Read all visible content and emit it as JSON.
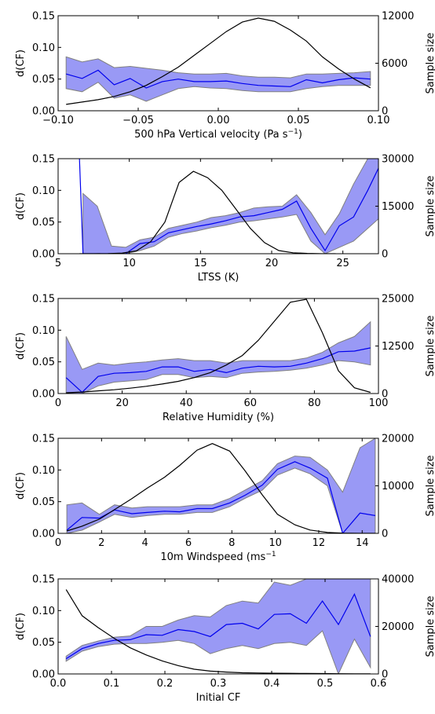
{
  "chart_data": [
    {
      "type": "line",
      "xlabel": "500 hPa Vertical velocity (Pa s",
      "xlabel_sup": "−1",
      "xlabel_tail": ")",
      "ylabel": "d(CF)",
      "y2label": "Sample size",
      "xlim": [
        -0.1,
        0.1
      ],
      "ylim": [
        0,
        0.15
      ],
      "y2lim": [
        0,
        12000
      ],
      "xticks": [
        -0.1,
        -0.05,
        0,
        0.05,
        0.1
      ],
      "xtick_labels": [
        "−0.10",
        "−0.05",
        "0.00",
        "0.05",
        "0.10"
      ],
      "yticks": [
        0,
        0.05,
        0.1,
        0.15
      ],
      "ytick_labels": [
        "0.00",
        "0.05",
        "0.10",
        "0.15"
      ],
      "y2ticks": [
        0,
        6000,
        12000
      ],
      "y2tick_labels": [
        "0",
        "6000",
        "12000"
      ],
      "band": {
        "x": [
          -0.095,
          -0.085,
          -0.075,
          -0.065,
          -0.055,
          -0.045,
          -0.035,
          -0.025,
          -0.015,
          -0.005,
          0.005,
          0.015,
          0.025,
          0.035,
          0.045,
          0.055,
          0.065,
          0.075,
          0.085,
          0.095
        ],
        "upper": [
          0.085,
          0.077,
          0.082,
          0.068,
          0.07,
          0.067,
          0.064,
          0.06,
          0.058,
          0.058,
          0.059,
          0.055,
          0.053,
          0.053,
          0.052,
          0.058,
          0.058,
          0.059,
          0.06,
          0.062
        ],
        "lower": [
          0.035,
          0.03,
          0.045,
          0.02,
          0.025,
          0.015,
          0.025,
          0.035,
          0.038,
          0.036,
          0.035,
          0.032,
          0.03,
          0.03,
          0.03,
          0.035,
          0.038,
          0.04,
          0.04,
          0.04
        ]
      },
      "mean": {
        "x": [
          -0.095,
          -0.085,
          -0.075,
          -0.065,
          -0.055,
          -0.045,
          -0.035,
          -0.025,
          -0.015,
          -0.005,
          0.005,
          0.015,
          0.025,
          0.035,
          0.045,
          0.055,
          0.065,
          0.075,
          0.085,
          0.095
        ],
        "y": [
          0.058,
          0.051,
          0.064,
          0.041,
          0.051,
          0.036,
          0.046,
          0.05,
          0.046,
          0.046,
          0.047,
          0.043,
          0.04,
          0.039,
          0.038,
          0.049,
          0.044,
          0.049,
          0.052,
          0.05
        ]
      },
      "count": {
        "x": [
          -0.095,
          -0.085,
          -0.075,
          -0.065,
          -0.055,
          -0.045,
          -0.035,
          -0.025,
          -0.015,
          -0.005,
          0.005,
          0.015,
          0.025,
          0.035,
          0.045,
          0.055,
          0.065,
          0.075,
          0.085,
          0.095
        ],
        "y": [
          800,
          1100,
          1400,
          1800,
          2400,
          3200,
          4300,
          5500,
          7000,
          8500,
          10000,
          11200,
          11700,
          11300,
          10200,
          8800,
          6800,
          5300,
          4000,
          2900
        ]
      }
    },
    {
      "type": "line",
      "xlabel": "LTSS (K)",
      "ylabel": "d(CF)",
      "y2label": "Sample size",
      "xlim": [
        5,
        27.5
      ],
      "ylim": [
        0,
        0.15
      ],
      "y2lim": [
        0,
        30000
      ],
      "xticks": [
        5,
        10,
        15,
        20,
        25
      ],
      "xtick_labels": [
        "5",
        "10",
        "15",
        "20",
        "25"
      ],
      "yticks": [
        0,
        0.05,
        0.1,
        0.15
      ],
      "ytick_labels": [
        "0.00",
        "0.05",
        "0.10",
        "0.15"
      ],
      "y2ticks": [
        0,
        15000,
        30000
      ],
      "y2tick_labels": [
        "0",
        "15000",
        "30000"
      ],
      "band": {
        "x": [
          6.75,
          7.75,
          8.75,
          9.75,
          10.75,
          11.75,
          12.75,
          13.75,
          14.75,
          15.75,
          16.75,
          17.75,
          18.75,
          19.75,
          20.75,
          21.75,
          22.75,
          23.75,
          24.75,
          25.75,
          26.75,
          27.5
        ],
        "upper": [
          0.095,
          0.075,
          0.012,
          0.01,
          0.022,
          0.026,
          0.04,
          0.045,
          0.05,
          0.057,
          0.06,
          0.065,
          0.072,
          0.074,
          0.075,
          0.093,
          0.065,
          0.03,
          0.063,
          0.11,
          0.15,
          0.15
        ],
        "lower": [
          0.0,
          0.0,
          0.0,
          0.0,
          0.005,
          0.012,
          0.026,
          0.032,
          0.036,
          0.041,
          0.045,
          0.05,
          0.052,
          0.055,
          0.058,
          0.062,
          0.02,
          0.0,
          0.01,
          0.02,
          0.04,
          0.055
        ]
      },
      "mean": {
        "x": [
          6.5,
          6.75,
          7.75,
          8.75,
          9.75,
          10.75,
          11.75,
          12.75,
          13.75,
          14.75,
          15.75,
          16.75,
          17.75,
          18.75,
          19.75,
          20.75,
          21.75,
          22.75,
          23.75,
          24.75,
          25.75,
          26.75,
          27.5
        ],
        "y": [
          0.15,
          0.0,
          0.0,
          0.0,
          0.0,
          0.016,
          0.019,
          0.033,
          0.038,
          0.043,
          0.047,
          0.052,
          0.058,
          0.06,
          0.065,
          0.07,
          0.083,
          0.04,
          0.005,
          0.044,
          0.058,
          0.1,
          0.135
        ]
      },
      "count": {
        "x": [
          6.5,
          7.5,
          8.5,
          9.5,
          10.5,
          11.5,
          12.5,
          13.5,
          14.5,
          15.5,
          16.5,
          17.5,
          18.5,
          19.5,
          20.5,
          21.5,
          22.5,
          23.5,
          24.5
        ],
        "y": [
          0,
          0,
          50,
          200,
          900,
          3800,
          10000,
          22500,
          26000,
          24000,
          20000,
          14000,
          8000,
          3500,
          1000,
          300,
          100,
          0,
          0
        ]
      }
    },
    {
      "type": "line",
      "xlabel": "Relative Humidity (%)",
      "ylabel": "d(CF)",
      "y2label": "Sample size",
      "xlim": [
        0,
        100
      ],
      "ylim": [
        0,
        0.15
      ],
      "y2lim": [
        0,
        25000
      ],
      "xticks": [
        0,
        20,
        40,
        60,
        80,
        100
      ],
      "xtick_labels": [
        "0",
        "20",
        "40",
        "60",
        "80",
        "100"
      ],
      "yticks": [
        0,
        0.05,
        0.1,
        0.15
      ],
      "ytick_labels": [
        "0.00",
        "0.05",
        "0.10",
        "0.15"
      ],
      "y2ticks": [
        0,
        12500,
        25000
      ],
      "y2tick_labels": [
        "0",
        "12500",
        "25000"
      ],
      "band": {
        "x": [
          2.5,
          7.5,
          12.5,
          17.5,
          22.5,
          27.5,
          32.5,
          37.5,
          42.5,
          47.5,
          52.5,
          57.5,
          62.5,
          67.5,
          72.5,
          77.5,
          82.5,
          87.5,
          92.5,
          97.5
        ],
        "upper": [
          0.09,
          0.038,
          0.048,
          0.045,
          0.048,
          0.05,
          0.053,
          0.055,
          0.052,
          0.052,
          0.048,
          0.052,
          0.052,
          0.052,
          0.052,
          0.056,
          0.065,
          0.08,
          0.09,
          0.113
        ],
        "lower": [
          0.0,
          0.0,
          0.012,
          0.018,
          0.02,
          0.022,
          0.03,
          0.03,
          0.025,
          0.027,
          0.025,
          0.032,
          0.034,
          0.035,
          0.037,
          0.04,
          0.045,
          0.052,
          0.05,
          0.045
        ]
      },
      "mean": {
        "x": [
          2.5,
          7.5,
          12.5,
          17.5,
          22.5,
          27.5,
          32.5,
          37.5,
          42.5,
          47.5,
          52.5,
          57.5,
          62.5,
          67.5,
          72.5,
          77.5,
          82.5,
          87.5,
          92.5,
          97.5
        ],
        "y": [
          0.025,
          0.002,
          0.027,
          0.032,
          0.033,
          0.035,
          0.042,
          0.042,
          0.035,
          0.038,
          0.033,
          0.04,
          0.043,
          0.042,
          0.043,
          0.048,
          0.055,
          0.066,
          0.067,
          0.072
        ]
      },
      "count": {
        "x": [
          2.5,
          7.5,
          12.5,
          17.5,
          22.5,
          27.5,
          32.5,
          37.5,
          42.5,
          47.5,
          52.5,
          57.5,
          62.5,
          67.5,
          72.5,
          77.5,
          82.5,
          87.5,
          92.5,
          97.5
        ],
        "y": [
          200,
          400,
          700,
          1000,
          1400,
          1900,
          2500,
          3200,
          4200,
          5500,
          7500,
          10000,
          14000,
          19000,
          24000,
          24800,
          16000,
          6000,
          1500,
          300
        ]
      }
    },
    {
      "type": "line",
      "xlabel": "10m Windspeed (ms",
      "xlabel_sup": "−1",
      "xlabel_tail": "",
      "ylabel": "d(CF)",
      "y2label": "Sample size",
      "xlim": [
        0,
        14.75
      ],
      "ylim": [
        0,
        0.15
      ],
      "y2lim": [
        0,
        20000
      ],
      "xticks": [
        0,
        2,
        4,
        6,
        8,
        10,
        12,
        14
      ],
      "xtick_labels": [
        "0",
        "2",
        "4",
        "6",
        "8",
        "10",
        "12",
        "14"
      ],
      "yticks": [
        0,
        0.05,
        0.1,
        0.15
      ],
      "ytick_labels": [
        "0.00",
        "0.05",
        "0.10",
        "0.15"
      ],
      "y2ticks": [
        0,
        10000,
        20000
      ],
      "y2tick_labels": [
        "0",
        "10000",
        "20000"
      ],
      "band": {
        "x": [
          0.4,
          1.1,
          1.9,
          2.6,
          3.4,
          4.1,
          4.9,
          5.6,
          6.4,
          7.1,
          7.9,
          8.6,
          9.4,
          10.1,
          10.9,
          11.6,
          12.4,
          13.1,
          13.9,
          14.6
        ],
        "upper": [
          0.045,
          0.048,
          0.03,
          0.045,
          0.04,
          0.042,
          0.042,
          0.042,
          0.045,
          0.045,
          0.055,
          0.068,
          0.083,
          0.11,
          0.122,
          0.12,
          0.1,
          0.065,
          0.135,
          0.15
        ],
        "lower": [
          0.0,
          0.005,
          0.018,
          0.03,
          0.025,
          0.028,
          0.03,
          0.03,
          0.033,
          0.033,
          0.042,
          0.055,
          0.068,
          0.092,
          0.103,
          0.094,
          0.075,
          0.0,
          0.0,
          0.0
        ]
      },
      "mean": {
        "x": [
          0.4,
          1.1,
          1.9,
          2.6,
          3.4,
          4.1,
          4.9,
          5.6,
          6.4,
          7.1,
          7.9,
          8.6,
          9.4,
          10.1,
          10.9,
          11.6,
          12.4,
          13.1,
          13.9,
          14.6
        ],
        "y": [
          0.005,
          0.025,
          0.024,
          0.037,
          0.031,
          0.033,
          0.035,
          0.034,
          0.039,
          0.039,
          0.048,
          0.06,
          0.076,
          0.101,
          0.113,
          0.103,
          0.087,
          0.0,
          0.032,
          0.028
        ]
      },
      "count": {
        "x": [
          0.4,
          1.1,
          1.9,
          2.6,
          3.4,
          4.1,
          4.9,
          5.6,
          6.4,
          7.1,
          7.9,
          8.6,
          9.4,
          10.1,
          10.9,
          11.6,
          12.4,
          13.1,
          13.9,
          14.6
        ],
        "y": [
          500,
          1500,
          3000,
          5000,
          7300,
          9500,
          11800,
          14300,
          17500,
          18900,
          17300,
          13200,
          8100,
          4000,
          1800,
          700,
          200,
          50,
          0,
          0
        ]
      }
    },
    {
      "type": "line",
      "xlabel": "Initial CF",
      "ylabel": "d(CF)",
      "y2label": "Sample size",
      "xlim": [
        0,
        0.6
      ],
      "ylim": [
        0,
        0.15
      ],
      "y2lim": [
        0,
        40000
      ],
      "xticks": [
        0,
        0.1,
        0.2,
        0.3,
        0.4,
        0.5,
        0.6
      ],
      "xtick_labels": [
        "0.0",
        "0.1",
        "0.2",
        "0.3",
        "0.4",
        "0.5",
        "0.6"
      ],
      "yticks": [
        0,
        0.05,
        0.1,
        0.15
      ],
      "ytick_labels": [
        "0.00",
        "0.05",
        "0.10",
        "0.15"
      ],
      "y2ticks": [
        0,
        20000,
        40000
      ],
      "y2tick_labels": [
        "0",
        "20000",
        "40000"
      ],
      "band": {
        "x": [
          0.015,
          0.045,
          0.075,
          0.105,
          0.135,
          0.165,
          0.195,
          0.225,
          0.255,
          0.285,
          0.315,
          0.345,
          0.375,
          0.405,
          0.435,
          0.465,
          0.495,
          0.525,
          0.555,
          0.585
        ],
        "upper": [
          0.028,
          0.045,
          0.052,
          0.058,
          0.06,
          0.075,
          0.075,
          0.085,
          0.092,
          0.09,
          0.108,
          0.115,
          0.112,
          0.145,
          0.14,
          0.15,
          0.15,
          0.15,
          0.15,
          0.15
        ],
        "lower": [
          0.02,
          0.036,
          0.043,
          0.047,
          0.048,
          0.048,
          0.05,
          0.053,
          0.048,
          0.032,
          0.04,
          0.045,
          0.04,
          0.048,
          0.05,
          0.045,
          0.068,
          0.0,
          0.055,
          0.01
        ]
      },
      "mean": {
        "x": [
          0.015,
          0.045,
          0.075,
          0.105,
          0.135,
          0.165,
          0.195,
          0.225,
          0.255,
          0.285,
          0.315,
          0.345,
          0.375,
          0.405,
          0.435,
          0.465,
          0.495,
          0.525,
          0.555,
          0.585
        ],
        "y": [
          0.024,
          0.04,
          0.048,
          0.053,
          0.054,
          0.062,
          0.061,
          0.07,
          0.067,
          0.059,
          0.078,
          0.08,
          0.071,
          0.094,
          0.095,
          0.08,
          0.115,
          0.078,
          0.126,
          0.059
        ]
      },
      "count": {
        "x": [
          0.015,
          0.045,
          0.075,
          0.105,
          0.135,
          0.165,
          0.195,
          0.225,
          0.255,
          0.285,
          0.315,
          0.345,
          0.375,
          0.405,
          0.435,
          0.465,
          0.495,
          0.525,
          0.555,
          0.585
        ],
        "y": [
          35500,
          24500,
          19500,
          15000,
          11000,
          8000,
          5500,
          3500,
          2000,
          1200,
          800,
          500,
          400,
          300,
          250,
          200,
          150,
          100,
          50,
          20
        ]
      }
    }
  ]
}
